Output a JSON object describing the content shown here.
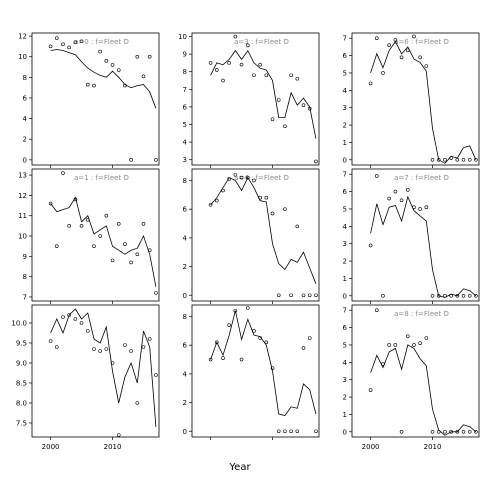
{
  "figure": {
    "xlabel": "Year",
    "line_color": "#000000",
    "point_color": "#000000",
    "title_color": "#8c8c8c"
  },
  "chart_data": [
    {
      "type": "line",
      "title": "a=0 : f=Fleet D",
      "xlim": [
        1997,
        2017.5
      ],
      "ylim": [
        -0.5,
        12.3
      ],
      "xticks": [
        2000,
        2010
      ],
      "show_xtick_labels": false,
      "yticks": [
        0,
        2,
        4,
        6,
        8,
        10,
        12
      ],
      "series": [
        {
          "kind": "points",
          "x": [
            2000,
            2001,
            2002,
            2003,
            2004,
            2005,
            2006,
            2007,
            2008,
            2009,
            2010,
            2011,
            2012,
            2013,
            2014,
            2015,
            2016,
            2017
          ],
          "y": [
            11.0,
            11.8,
            11.2,
            10.9,
            11.4,
            11.5,
            7.3,
            7.2,
            10.5,
            9.6,
            9.2,
            8.7,
            7.2,
            0.0,
            10.0,
            8.1,
            10.0,
            0.0
          ]
        },
        {
          "kind": "line",
          "x": [
            2000,
            2001,
            2002,
            2003,
            2004,
            2005,
            2006,
            2007,
            2008,
            2009,
            2010,
            2011,
            2012,
            2013,
            2014,
            2015,
            2016,
            2017
          ],
          "y": [
            10.6,
            10.7,
            10.6,
            10.4,
            10.2,
            9.5,
            8.9,
            8.5,
            8.2,
            8.0,
            8.6,
            8.0,
            7.3,
            7.0,
            7.2,
            7.3,
            6.6,
            5.0
          ]
        }
      ]
    },
    {
      "type": "line",
      "title": "a=1 : f=Fleet D",
      "xlim": [
        1997,
        2017.5
      ],
      "ylim": [
        6.8,
        13.3
      ],
      "xticks": [
        2000,
        2010
      ],
      "show_xtick_labels": false,
      "yticks": [
        7,
        8,
        9,
        10,
        11,
        12,
        13
      ],
      "series": [
        {
          "kind": "points",
          "x": [
            2000,
            2001,
            2002,
            2003,
            2004,
            2005,
            2006,
            2007,
            2008,
            2009,
            2010,
            2011,
            2012,
            2013,
            2014,
            2015,
            2016,
            2017
          ],
          "y": [
            11.6,
            9.5,
            13.1,
            10.5,
            11.8,
            10.5,
            10.8,
            9.5,
            10.0,
            11.0,
            8.8,
            10.6,
            9.6,
            8.7,
            9.1,
            10.6,
            9.3,
            7.2
          ]
        },
        {
          "kind": "line",
          "x": [
            2000,
            2001,
            2002,
            2003,
            2004,
            2005,
            2006,
            2007,
            2008,
            2009,
            2010,
            2011,
            2012,
            2013,
            2014,
            2015,
            2016,
            2017
          ],
          "y": [
            11.6,
            11.2,
            11.3,
            11.4,
            11.9,
            10.7,
            11.0,
            10.1,
            10.3,
            10.5,
            9.5,
            9.3,
            9.1,
            9.3,
            9.4,
            10.0,
            9.1,
            7.5
          ]
        }
      ]
    },
    {
      "type": "line",
      "title": "",
      "xlim": [
        1997,
        2017.5
      ],
      "ylim": [
        7.15,
        10.45
      ],
      "xticks": [
        2000,
        2010
      ],
      "show_xtick_labels": true,
      "yticks": [
        7.5,
        8.0,
        8.5,
        9.0,
        9.5,
        10.0
      ],
      "series": [
        {
          "kind": "points",
          "x": [
            2000,
            2001,
            2002,
            2003,
            2004,
            2005,
            2006,
            2007,
            2008,
            2009,
            2010,
            2011,
            2012,
            2013,
            2014,
            2015,
            2016,
            2017
          ],
          "y": [
            9.55,
            9.4,
            10.15,
            10.2,
            10.1,
            10.0,
            9.8,
            9.35,
            9.3,
            9.35,
            9.0,
            7.2,
            9.45,
            9.3,
            8.0,
            9.4,
            9.6,
            8.7
          ]
        },
        {
          "kind": "line",
          "x": [
            2000,
            2001,
            2002,
            2003,
            2004,
            2005,
            2006,
            2007,
            2008,
            2009,
            2010,
            2011,
            2012,
            2013,
            2014,
            2015,
            2016,
            2017
          ],
          "y": [
            9.75,
            10.1,
            9.75,
            10.2,
            10.35,
            10.1,
            10.25,
            9.6,
            9.5,
            9.9,
            8.8,
            8.0,
            8.65,
            9.0,
            8.5,
            9.8,
            9.4,
            7.4
          ]
        }
      ]
    },
    {
      "type": "line",
      "title": "a=3 : f=Fleet D",
      "xlim": [
        1997,
        2017.5
      ],
      "ylim": [
        2.7,
        10.2
      ],
      "xticks": [
        2000,
        2010
      ],
      "show_xtick_labels": false,
      "yticks": [
        3,
        4,
        5,
        6,
        7,
        8,
        9,
        10
      ],
      "series": [
        {
          "kind": "points",
          "x": [
            2000,
            2001,
            2002,
            2003,
            2004,
            2005,
            2006,
            2007,
            2008,
            2009,
            2010,
            2011,
            2012,
            2013,
            2014,
            2015,
            2016,
            2017
          ],
          "y": [
            8.5,
            8.1,
            7.5,
            8.5,
            10.0,
            8.4,
            9.5,
            7.8,
            8.4,
            7.8,
            5.3,
            6.4,
            4.9,
            7.8,
            7.6,
            6.1,
            5.9,
            2.9
          ]
        },
        {
          "kind": "line",
          "x": [
            2000,
            2001,
            2002,
            2003,
            2004,
            2005,
            2006,
            2007,
            2008,
            2009,
            2010,
            2011,
            2012,
            2013,
            2014,
            2015,
            2016,
            2017
          ],
          "y": [
            7.8,
            8.5,
            8.4,
            8.7,
            9.2,
            8.7,
            9.2,
            8.5,
            8.2,
            8.1,
            7.5,
            5.4,
            5.4,
            6.8,
            6.1,
            6.5,
            6.0,
            4.2
          ]
        }
      ]
    },
    {
      "type": "line",
      "title": "a=4 : f=Fleet D",
      "xlim": [
        1997,
        2017.5
      ],
      "ylim": [
        -0.4,
        8.8
      ],
      "xticks": [
        2000,
        2010
      ],
      "show_xtick_labels": false,
      "yticks": [
        0,
        2,
        4,
        6,
        8
      ],
      "series": [
        {
          "kind": "points",
          "x": [
            2000,
            2001,
            2002,
            2003,
            2004,
            2005,
            2006,
            2007,
            2008,
            2009,
            2010,
            2011,
            2012,
            2013,
            2014,
            2015,
            2016,
            2017
          ],
          "y": [
            6.3,
            6.6,
            7.3,
            8.1,
            8.4,
            8.2,
            8.2,
            8.0,
            6.8,
            6.8,
            5.7,
            0.0,
            6.0,
            0.0,
            4.8,
            0.0,
            0.0,
            0.0
          ]
        },
        {
          "kind": "line",
          "x": [
            2000,
            2001,
            2002,
            2003,
            2004,
            2005,
            2006,
            2007,
            2008,
            2009,
            2010,
            2011,
            2012,
            2013,
            2014,
            2015,
            2016,
            2017
          ],
          "y": [
            6.3,
            6.8,
            7.5,
            8.2,
            8.0,
            7.3,
            8.2,
            7.5,
            6.6,
            6.5,
            3.6,
            2.2,
            1.8,
            2.5,
            2.3,
            3.0,
            1.9,
            0.8
          ]
        }
      ]
    },
    {
      "type": "line",
      "title": "",
      "xlim": [
        1997,
        2017.5
      ],
      "ylim": [
        -0.4,
        8.8
      ],
      "xticks": [
        2000,
        2010
      ],
      "show_xtick_labels": false,
      "yticks": [
        0,
        2,
        4,
        6,
        8
      ],
      "series": [
        {
          "kind": "points",
          "x": [
            2000,
            2001,
            2002,
            2003,
            2004,
            2005,
            2006,
            2007,
            2008,
            2009,
            2010,
            2011,
            2012,
            2013,
            2014,
            2015,
            2016,
            2017
          ],
          "y": [
            5.0,
            6.2,
            5.1,
            7.4,
            8.4,
            5.0,
            8.6,
            7.0,
            6.5,
            6.2,
            4.4,
            0.0,
            0.0,
            0.0,
            0.0,
            5.8,
            6.5,
            0.0
          ]
        },
        {
          "kind": "line",
          "x": [
            2000,
            2001,
            2002,
            2003,
            2004,
            2005,
            2006,
            2007,
            2008,
            2009,
            2010,
            2011,
            2012,
            2013,
            2014,
            2015,
            2016,
            2017
          ],
          "y": [
            5.0,
            6.2,
            5.3,
            6.7,
            8.4,
            6.4,
            7.8,
            6.7,
            6.6,
            6.0,
            4.2,
            1.2,
            1.1,
            1.7,
            1.6,
            3.3,
            2.9,
            1.2
          ]
        }
      ]
    },
    {
      "type": "line",
      "title": "a=6 : f=Fleet D",
      "xlim": [
        1997,
        2017.5
      ],
      "ylim": [
        -0.3,
        7.3
      ],
      "xticks": [
        2000,
        2010
      ],
      "show_xtick_labels": false,
      "yticks": [
        0,
        1,
        2,
        3,
        4,
        5,
        6,
        7
      ],
      "series": [
        {
          "kind": "points",
          "x": [
            2000,
            2001,
            2002,
            2003,
            2004,
            2005,
            2006,
            2007,
            2008,
            2009,
            2010,
            2011,
            2012,
            2013,
            2014,
            2015,
            2016,
            2017
          ],
          "y": [
            4.4,
            7.0,
            5.0,
            6.6,
            6.9,
            5.9,
            6.3,
            7.1,
            5.9,
            5.4,
            0.0,
            0.0,
            0.0,
            0.1,
            0.0,
            0.0,
            0.0,
            0.0
          ]
        },
        {
          "kind": "line",
          "x": [
            2000,
            2001,
            2002,
            2003,
            2004,
            2005,
            2006,
            2007,
            2008,
            2009,
            2010,
            2011,
            2012,
            2013,
            2014,
            2015,
            2016,
            2017
          ],
          "y": [
            5.0,
            6.1,
            5.3,
            6.3,
            6.8,
            6.1,
            6.5,
            5.8,
            5.6,
            5.1,
            1.8,
            0.0,
            -0.2,
            0.2,
            0.1,
            0.7,
            0.8,
            0.0
          ]
        }
      ]
    },
    {
      "type": "line",
      "title": "a=7 : f=Fleet D",
      "xlim": [
        1997,
        2017.5
      ],
      "ylim": [
        -0.3,
        7.3
      ],
      "xticks": [
        2000,
        2010
      ],
      "show_xtick_labels": false,
      "yticks": [
        0,
        1,
        2,
        3,
        4,
        5,
        6,
        7
      ],
      "series": [
        {
          "kind": "points",
          "x": [
            2000,
            2001,
            2002,
            2003,
            2004,
            2005,
            2006,
            2007,
            2008,
            2009,
            2010,
            2011,
            2012,
            2013,
            2014,
            2015,
            2016,
            2017
          ],
          "y": [
            2.9,
            6.9,
            0.0,
            5.6,
            6.0,
            5.5,
            6.1,
            5.1,
            5.0,
            5.1,
            0.0,
            0.0,
            0.0,
            0.0,
            0.0,
            0.0,
            0.0,
            0.0
          ]
        },
        {
          "kind": "line",
          "x": [
            2000,
            2001,
            2002,
            2003,
            2004,
            2005,
            2006,
            2007,
            2008,
            2009,
            2010,
            2011,
            2012,
            2013,
            2014,
            2015,
            2016,
            2017
          ],
          "y": [
            3.6,
            5.3,
            4.1,
            5.1,
            5.2,
            4.3,
            5.7,
            4.9,
            4.6,
            4.3,
            1.5,
            0.0,
            -0.1,
            0.1,
            0.0,
            0.4,
            0.3,
            0.0
          ]
        }
      ]
    },
    {
      "type": "line",
      "title": "a=8 : f=Fleet D",
      "xlim": [
        1997,
        2017.5
      ],
      "ylim": [
        -0.3,
        7.3
      ],
      "xticks": [
        2000,
        2010
      ],
      "show_xtick_labels": true,
      "yticks": [
        0,
        1,
        2,
        3,
        4,
        5,
        6,
        7
      ],
      "series": [
        {
          "kind": "points",
          "x": [
            2000,
            2001,
            2002,
            2003,
            2004,
            2005,
            2006,
            2007,
            2008,
            2009,
            2010,
            2011,
            2012,
            2013,
            2014,
            2015,
            2016,
            2017
          ],
          "y": [
            2.4,
            7.0,
            3.9,
            5.0,
            5.0,
            0.0,
            5.5,
            5.0,
            5.1,
            5.4,
            0.0,
            0.0,
            0.0,
            0.0,
            0.0,
            0.0,
            0.0,
            0.0
          ]
        },
        {
          "kind": "line",
          "x": [
            2000,
            2001,
            2002,
            2003,
            2004,
            2005,
            2006,
            2007,
            2008,
            2009,
            2010,
            2011,
            2012,
            2013,
            2014,
            2015,
            2016,
            2017
          ],
          "y": [
            3.4,
            4.4,
            3.7,
            4.6,
            4.8,
            3.6,
            5.0,
            4.8,
            4.2,
            3.8,
            1.3,
            0.1,
            -0.2,
            0.0,
            0.0,
            0.4,
            0.3,
            0.0
          ]
        }
      ]
    }
  ]
}
